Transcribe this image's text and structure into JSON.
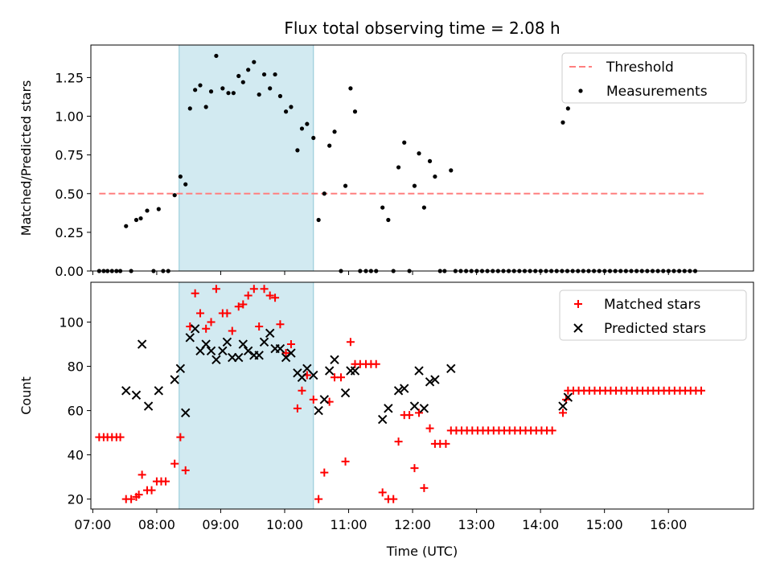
{
  "chart_data": {
    "title": "Flux total observing time = 2.08 h",
    "xlabel": "Time (UTC)",
    "x_unit": "hours (UTC)",
    "x_ticks": [
      7,
      8,
      9,
      10,
      11,
      12,
      13,
      14,
      15,
      16
    ],
    "x_tick_labels": [
      "07:00",
      "08:00",
      "09:00",
      "10:00",
      "11:00",
      "12:00",
      "13:00",
      "14:00",
      "15:00",
      "16:00"
    ],
    "xlim": [
      6.97,
      17.33
    ],
    "highlight_span": [
      8.35,
      10.45
    ],
    "highlight_color": "#add8e6",
    "panels": [
      {
        "type": "scatter",
        "ylabel": "Matched/Predicted stars",
        "ylim": [
          0,
          1.46
        ],
        "y_ticks": [
          0,
          0.25,
          0.5,
          0.75,
          1.0,
          1.25
        ],
        "y_tick_labels": [
          "0.00",
          "0.25",
          "0.50",
          "0.75",
          "1.00",
          "1.25"
        ],
        "threshold": {
          "name": "Threshold",
          "y": 0.5,
          "x_range": [
            7.1,
            16.55
          ],
          "color": "#ff7f7f"
        },
        "legend": {
          "placement": "top-right",
          "entries": [
            "Threshold",
            "Measurements"
          ]
        },
        "series": [
          {
            "name": "Measurements",
            "marker": "dot",
            "color": "#000000",
            "points": [
              [
                7.1,
                0
              ],
              [
                7.17,
                0
              ],
              [
                7.23,
                0
              ],
              [
                7.3,
                0
              ],
              [
                7.37,
                0
              ],
              [
                7.43,
                0
              ],
              [
                7.52,
                0.29
              ],
              [
                7.6,
                0
              ],
              [
                7.68,
                0.33
              ],
              [
                7.75,
                0.34
              ],
              [
                7.85,
                0.39
              ],
              [
                7.95,
                0
              ],
              [
                8.03,
                0.4
              ],
              [
                8.1,
                0
              ],
              [
                8.18,
                0
              ],
              [
                8.28,
                0.49
              ],
              [
                8.37,
                0.61
              ],
              [
                8.45,
                0.56
              ],
              [
                8.52,
                1.05
              ],
              [
                8.6,
                1.17
              ],
              [
                8.68,
                1.2
              ],
              [
                8.77,
                1.06
              ],
              [
                8.85,
                1.16
              ],
              [
                8.93,
                1.39
              ],
              [
                9.03,
                1.18
              ],
              [
                9.12,
                1.15
              ],
              [
                9.2,
                1.15
              ],
              [
                9.28,
                1.26
              ],
              [
                9.35,
                1.22
              ],
              [
                9.43,
                1.3
              ],
              [
                9.52,
                1.35
              ],
              [
                9.6,
                1.14
              ],
              [
                9.68,
                1.27
              ],
              [
                9.77,
                1.18
              ],
              [
                9.85,
                1.27
              ],
              [
                9.93,
                1.13
              ],
              [
                10.02,
                1.03
              ],
              [
                10.1,
                1.06
              ],
              [
                10.2,
                0.78
              ],
              [
                10.27,
                0.92
              ],
              [
                10.35,
                0.95
              ],
              [
                10.45,
                0.86
              ],
              [
                10.53,
                0.33
              ],
              [
                10.62,
                0.5
              ],
              [
                10.7,
                0.81
              ],
              [
                10.78,
                0.9
              ],
              [
                10.88,
                0
              ],
              [
                10.95,
                0.55
              ],
              [
                11.03,
                1.18
              ],
              [
                11.1,
                1.03
              ],
              [
                11.18,
                0
              ],
              [
                11.27,
                0
              ],
              [
                11.35,
                0
              ],
              [
                11.43,
                0
              ],
              [
                11.53,
                0.41
              ],
              [
                11.62,
                0.33
              ],
              [
                11.7,
                0
              ],
              [
                11.78,
                0.67
              ],
              [
                11.87,
                0.83
              ],
              [
                11.95,
                0
              ],
              [
                12.03,
                0.55
              ],
              [
                12.1,
                0.76
              ],
              [
                12.18,
                0.41
              ],
              [
                12.27,
                0.71
              ],
              [
                12.35,
                0.61
              ],
              [
                12.43,
                0
              ],
              [
                12.5,
                0
              ],
              [
                12.6,
                0.65
              ],
              [
                12.67,
                0
              ]
            ],
            "zero_series_from": 12.67,
            "zero_series_to": 16.5,
            "zero_series_step": 0.0833,
            "extra_points": [
              [
                14.35,
                0.96
              ],
              [
                14.43,
                1.05
              ]
            ]
          }
        ]
      },
      {
        "type": "scatter",
        "ylabel": "Count",
        "ylim": [
          15.5,
          118
        ],
        "y_ticks": [
          20,
          40,
          60,
          80,
          100
        ],
        "y_tick_labels": [
          "20",
          "40",
          "60",
          "80",
          "100"
        ],
        "legend": {
          "placement": "top-right",
          "entries": [
            "Matched stars",
            "Predicted stars"
          ]
        },
        "series": [
          {
            "name": "Matched stars",
            "marker": "plus",
            "color": "#ff0000",
            "points": [
              [
                7.1,
                48
              ],
              [
                7.17,
                48
              ],
              [
                7.23,
                48
              ],
              [
                7.3,
                48
              ],
              [
                7.37,
                48
              ],
              [
                7.43,
                48
              ],
              [
                7.52,
                20
              ],
              [
                7.6,
                20
              ],
              [
                7.68,
                21
              ],
              [
                7.72,
                22
              ],
              [
                7.77,
                31
              ],
              [
                7.85,
                24
              ],
              [
                7.92,
                24
              ],
              [
                8.0,
                28
              ],
              [
                8.07,
                28
              ],
              [
                8.14,
                28
              ],
              [
                8.28,
                36
              ],
              [
                8.37,
                48
              ],
              [
                8.45,
                33
              ],
              [
                8.52,
                98
              ],
              [
                8.6,
                113
              ],
              [
                8.68,
                104
              ],
              [
                8.77,
                97
              ],
              [
                8.85,
                100
              ],
              [
                8.93,
                115
              ],
              [
                9.03,
                104
              ],
              [
                9.1,
                104
              ],
              [
                9.18,
                96
              ],
              [
                9.28,
                107
              ],
              [
                9.35,
                108
              ],
              [
                9.43,
                112
              ],
              [
                9.52,
                115
              ],
              [
                9.6,
                98
              ],
              [
                9.68,
                115
              ],
              [
                9.77,
                112
              ],
              [
                9.85,
                111
              ],
              [
                9.93,
                99
              ],
              [
                10.02,
                86
              ],
              [
                10.1,
                90
              ],
              [
                10.2,
                61
              ],
              [
                10.27,
                69
              ],
              [
                10.35,
                76
              ],
              [
                10.45,
                65
              ],
              [
                10.53,
                20
              ],
              [
                10.62,
                32
              ],
              [
                10.7,
                64
              ],
              [
                10.78,
                75
              ],
              [
                10.88,
                75
              ],
              [
                10.95,
                37
              ],
              [
                11.03,
                91
              ],
              [
                11.1,
                81
              ],
              [
                11.18,
                81
              ],
              [
                11.27,
                81
              ],
              [
                11.35,
                81
              ],
              [
                11.43,
                81
              ],
              [
                11.53,
                23
              ],
              [
                11.62,
                20
              ],
              [
                11.7,
                20
              ],
              [
                11.78,
                46
              ],
              [
                11.87,
                58
              ],
              [
                11.95,
                58
              ],
              [
                12.03,
                34
              ],
              [
                12.1,
                59
              ],
              [
                12.18,
                25
              ],
              [
                12.27,
                52
              ],
              [
                12.35,
                45
              ],
              [
                12.43,
                45
              ],
              [
                12.52,
                45
              ]
            ],
            "const_runs": [
              {
                "from": 12.6,
                "to": 14.25,
                "y": 51
              },
              {
                "from": 14.43,
                "to": 16.52,
                "y": 69
              }
            ],
            "extra_points": [
              [
                14.35,
                59
              ],
              [
                14.4,
                65
              ]
            ]
          },
          {
            "name": "Predicted stars",
            "marker": "x",
            "color": "#000000",
            "points": [
              [
                7.52,
                69
              ],
              [
                7.68,
                67
              ],
              [
                7.77,
                90
              ],
              [
                7.87,
                62
              ],
              [
                8.03,
                69
              ],
              [
                8.28,
                74
              ],
              [
                8.37,
                79
              ],
              [
                8.45,
                59
              ],
              [
                8.52,
                93
              ],
              [
                8.6,
                97
              ],
              [
                8.68,
                87
              ],
              [
                8.77,
                90
              ],
              [
                8.85,
                87
              ],
              [
                8.93,
                83
              ],
              [
                9.03,
                87
              ],
              [
                9.1,
                91
              ],
              [
                9.18,
                84
              ],
              [
                9.28,
                84
              ],
              [
                9.35,
                90
              ],
              [
                9.43,
                87
              ],
              [
                9.52,
                85
              ],
              [
                9.6,
                85
              ],
              [
                9.68,
                91
              ],
              [
                9.77,
                95
              ],
              [
                9.85,
                88
              ],
              [
                9.93,
                88
              ],
              [
                10.02,
                84
              ],
              [
                10.1,
                86
              ],
              [
                10.2,
                77
              ],
              [
                10.27,
                75
              ],
              [
                10.35,
                79
              ],
              [
                10.45,
                76
              ],
              [
                10.53,
                60
              ],
              [
                10.62,
                65
              ],
              [
                10.7,
                78
              ],
              [
                10.78,
                83
              ],
              [
                10.95,
                68
              ],
              [
                11.03,
                78
              ],
              [
                11.1,
                78
              ],
              [
                11.53,
                56
              ],
              [
                11.62,
                61
              ],
              [
                11.78,
                69
              ],
              [
                11.87,
                70
              ],
              [
                12.03,
                62
              ],
              [
                12.1,
                78
              ],
              [
                12.18,
                61
              ],
              [
                12.27,
                73
              ],
              [
                12.35,
                74
              ],
              [
                12.6,
                79
              ],
              [
                14.35,
                62
              ],
              [
                14.43,
                66
              ]
            ]
          }
        ]
      }
    ]
  }
}
